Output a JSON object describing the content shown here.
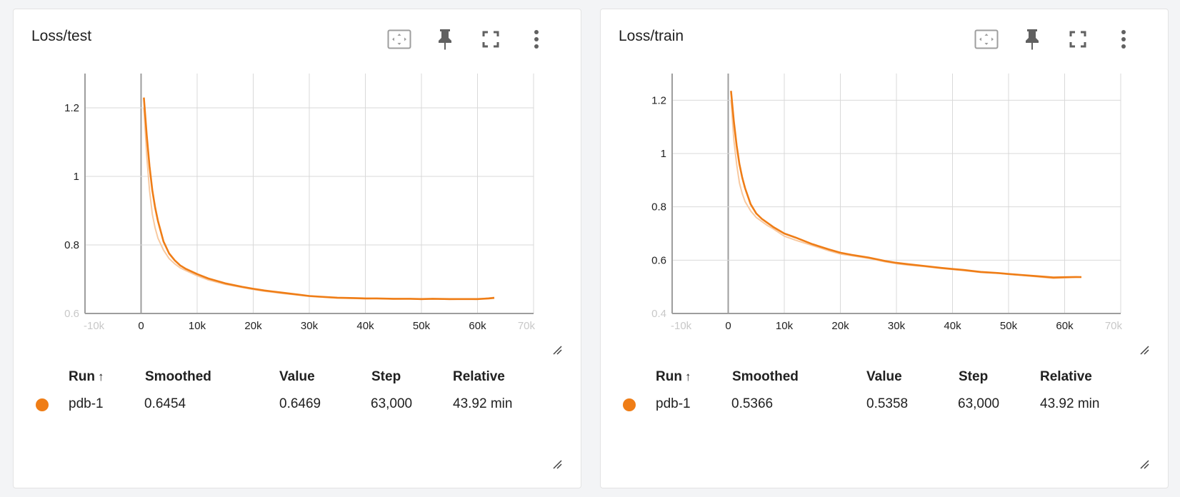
{
  "theme": {
    "accent": "#ef7d16",
    "accent_raw": "#f8c9a0",
    "grid": "#d9d9d9",
    "axis": "#9e9e9e",
    "icon": "#616161"
  },
  "icons": {
    "fit": "fit-domain-icon",
    "pin": "pin-icon",
    "fullscreen": "fullscreen-icon",
    "more": "more-vert-icon",
    "resize": "resize-corner-icon"
  },
  "table_headers": {
    "run": "Run",
    "run_sort": "↑",
    "smoothed": "Smoothed",
    "value": "Value",
    "step": "Step",
    "relative": "Relative"
  },
  "cards": [
    {
      "title": "Loss/test",
      "row": {
        "run": "pdb-1",
        "smoothed": "0.6454",
        "value": "0.6469",
        "step": "63,000",
        "relative": "43.92 min"
      }
    },
    {
      "title": "Loss/train",
      "row": {
        "run": "pdb-1",
        "smoothed": "0.5366",
        "value": "0.5358",
        "step": "63,000",
        "relative": "43.92 min"
      }
    }
  ],
  "chart_data": [
    {
      "type": "line",
      "title": "Loss/test",
      "xlim": [
        -10000,
        70000
      ],
      "ylim": [
        0.6,
        1.3
      ],
      "xticks": [
        -10000,
        0,
        10000,
        20000,
        30000,
        40000,
        50000,
        60000,
        70000
      ],
      "xtick_labels": [
        "-10k",
        "0",
        "10k",
        "20k",
        "30k",
        "40k",
        "50k",
        "60k",
        "70k"
      ],
      "yticks": [
        0.6,
        0.8,
        1,
        1.2
      ],
      "ytick_labels": [
        "0.6",
        "0.8",
        "1",
        "1.2"
      ],
      "grid": true,
      "series": [
        {
          "name": "pdb-1",
          "x": [
            500,
            1000,
            1500,
            2000,
            2500,
            3000,
            4000,
            5000,
            6000,
            7000,
            8000,
            10000,
            12000,
            15000,
            18000,
            20000,
            22000,
            25000,
            28000,
            30000,
            32000,
            35000,
            38000,
            40000,
            42000,
            45000,
            48000,
            50000,
            52000,
            55000,
            58000,
            60000,
            62000,
            63000
          ],
          "smoothed": [
            1.23,
            1.12,
            1.03,
            0.96,
            0.91,
            0.87,
            0.81,
            0.775,
            0.755,
            0.74,
            0.73,
            0.715,
            0.702,
            0.688,
            0.678,
            0.672,
            0.667,
            0.661,
            0.655,
            0.651,
            0.649,
            0.646,
            0.645,
            0.644,
            0.644,
            0.643,
            0.643,
            0.642,
            0.643,
            0.642,
            0.642,
            0.642,
            0.644,
            0.6454
          ],
          "raw": [
            1.2,
            1.06,
            0.96,
            0.89,
            0.85,
            0.82,
            0.785,
            0.76,
            0.745,
            0.733,
            0.725,
            0.71,
            0.698,
            0.685,
            0.676,
            0.67,
            0.665,
            0.659,
            0.654,
            0.65,
            0.648,
            0.645,
            0.644,
            0.643,
            0.644,
            0.642,
            0.643,
            0.641,
            0.643,
            0.641,
            0.642,
            0.641,
            0.645,
            0.6469
          ]
        }
      ]
    },
    {
      "type": "line",
      "title": "Loss/train",
      "xlim": [
        -10000,
        70000
      ],
      "ylim": [
        0.4,
        1.3
      ],
      "xticks": [
        -10000,
        0,
        10000,
        20000,
        30000,
        40000,
        50000,
        60000,
        70000
      ],
      "xtick_labels": [
        "-10k",
        "0",
        "10k",
        "20k",
        "30k",
        "40k",
        "50k",
        "60k",
        "70k"
      ],
      "yticks": [
        0.4,
        0.6,
        0.8,
        1,
        1.2
      ],
      "ytick_labels": [
        "0.4",
        "0.6",
        "0.8",
        "1",
        "1.2"
      ],
      "grid": true,
      "series": [
        {
          "name": "pdb-1",
          "x": [
            500,
            1000,
            1500,
            2000,
            2500,
            3000,
            4000,
            5000,
            6000,
            7000,
            8000,
            10000,
            12000,
            15000,
            18000,
            20000,
            22000,
            25000,
            28000,
            30000,
            32000,
            35000,
            38000,
            40000,
            42000,
            45000,
            48000,
            50000,
            52000,
            55000,
            58000,
            60000,
            62000,
            63000
          ],
          "smoothed": [
            1.235,
            1.12,
            1.03,
            0.96,
            0.91,
            0.87,
            0.81,
            0.775,
            0.755,
            0.74,
            0.725,
            0.7,
            0.685,
            0.66,
            0.64,
            0.628,
            0.62,
            0.61,
            0.597,
            0.59,
            0.585,
            0.578,
            0.571,
            0.567,
            0.563,
            0.556,
            0.552,
            0.548,
            0.545,
            0.54,
            0.535,
            0.536,
            0.537,
            0.5366
          ],
          "raw": [
            1.2,
            1.05,
            0.96,
            0.89,
            0.85,
            0.82,
            0.785,
            0.76,
            0.745,
            0.73,
            0.718,
            0.69,
            0.675,
            0.655,
            0.635,
            0.623,
            0.617,
            0.607,
            0.594,
            0.587,
            0.582,
            0.576,
            0.569,
            0.565,
            0.561,
            0.554,
            0.551,
            0.547,
            0.544,
            0.538,
            0.532,
            0.534,
            0.536,
            0.5358
          ]
        }
      ]
    }
  ]
}
